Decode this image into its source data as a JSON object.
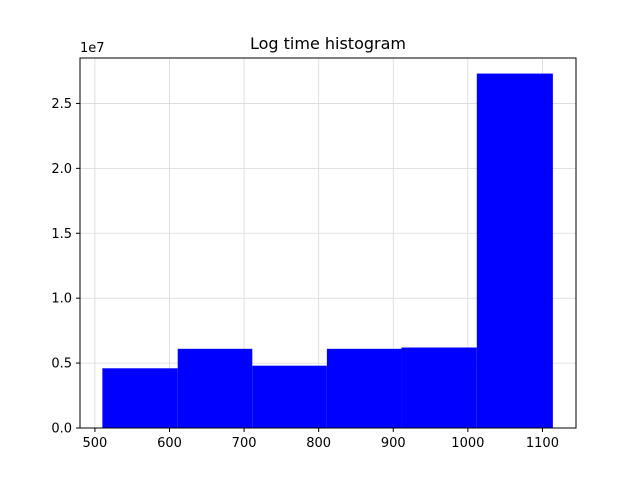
{
  "chart_data": {
    "type": "bar",
    "title": "Log time histogram",
    "xlabel": "",
    "ylabel": "",
    "y_offset_label": "1e7",
    "bar_color": "#0000ff",
    "grid": true,
    "grid_color": "#d9d9d9",
    "xlim": [
      480,
      1145
    ],
    "ylim": [
      0,
      2.85
    ],
    "x_ticks": [
      {
        "value": 500,
        "label": "500"
      },
      {
        "value": 600,
        "label": "600"
      },
      {
        "value": 700,
        "label": "700"
      },
      {
        "value": 800,
        "label": "800"
      },
      {
        "value": 900,
        "label": "900"
      },
      {
        "value": 1000,
        "label": "1000"
      },
      {
        "value": 1100,
        "label": "1100"
      }
    ],
    "y_ticks": [
      {
        "value": 0.0,
        "label": "0.0"
      },
      {
        "value": 0.5,
        "label": "0.5"
      },
      {
        "value": 1.0,
        "label": "1.0"
      },
      {
        "value": 1.5,
        "label": "1.5"
      },
      {
        "value": 2.0,
        "label": "2.0"
      },
      {
        "value": 2.5,
        "label": "2.5"
      }
    ],
    "bins": [
      {
        "x0": 510,
        "x1": 611,
        "value": 0.46
      },
      {
        "x0": 611,
        "x1": 711,
        "value": 0.61
      },
      {
        "x0": 711,
        "x1": 811,
        "value": 0.48
      },
      {
        "x0": 811,
        "x1": 911,
        "value": 0.61
      },
      {
        "x0": 911,
        "x1": 1012,
        "value": 0.62
      },
      {
        "x0": 1012,
        "x1": 1114,
        "value": 2.73
      }
    ]
  }
}
